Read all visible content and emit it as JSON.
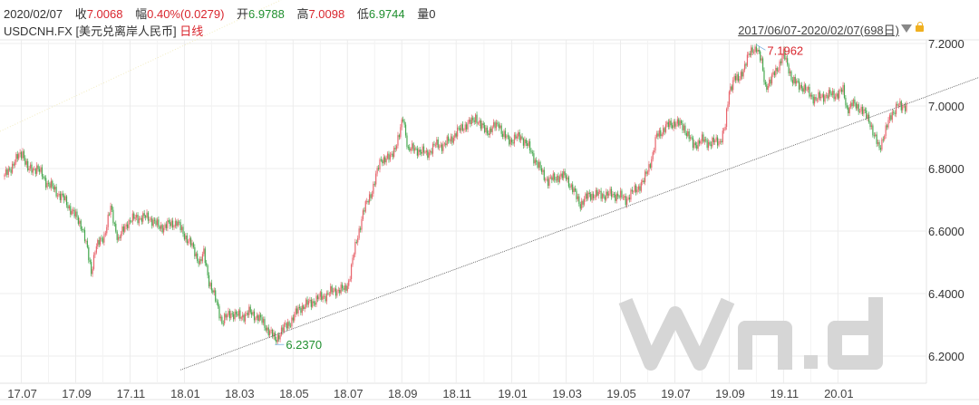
{
  "header": {
    "date": "2020/02/07",
    "close_label": "收",
    "close": "7.0068",
    "change_label": "幅",
    "change": "0.40%(0.0279)",
    "open_label": "开",
    "open": "6.9788",
    "high_label": "高",
    "high": "7.0098",
    "low_label": "低",
    "low": "6.9744",
    "volume_label": "量",
    "volume": "0",
    "symbol": "USDCNH.FX [美元兑离岸人民币]",
    "period": "日线",
    "range": "2017/06/07-2020/02/07(698日)"
  },
  "watermark": "Win.d",
  "colors": {
    "up": "#e8646c",
    "down": "#46a84f",
    "grid": "#ececec",
    "max": "#d9262e",
    "min": "#1f8f2e"
  },
  "chart_data": {
    "type": "candlestick",
    "title": "USDCNH.FX 日线",
    "xlabel": "",
    "ylabel": "",
    "ylim": [
      6.1558,
      7.2
    ],
    "x_unit": "trading day index (0 = 2017/06/07)",
    "x_ticks": [
      {
        "day": 13,
        "label": "17.07"
      },
      {
        "day": 55,
        "label": "17.09"
      },
      {
        "day": 97,
        "label": "17.11"
      },
      {
        "day": 139,
        "label": "18.01"
      },
      {
        "day": 181,
        "label": "18.03"
      },
      {
        "day": 223,
        "label": "18.05"
      },
      {
        "day": 265,
        "label": "18.07"
      },
      {
        "day": 307,
        "label": "18.09"
      },
      {
        "day": 349,
        "label": "18.11"
      },
      {
        "day": 392,
        "label": "19.01"
      },
      {
        "day": 434,
        "label": "19.03"
      },
      {
        "day": 476,
        "label": "19.05"
      },
      {
        "day": 518,
        "label": "19.07"
      },
      {
        "day": 560,
        "label": "19.09"
      },
      {
        "day": 602,
        "label": "19.11"
      },
      {
        "day": 644,
        "label": "20.01"
      }
    ],
    "y_ticks": [
      "7.2000",
      "7.0000",
      "6.8000",
      "6.6000",
      "6.4000",
      "6.2000"
    ],
    "y_tick_values": [
      7.2,
      7.0,
      6.8,
      6.6,
      6.4,
      6.2
    ],
    "closes_approx": [
      [
        0,
        6.774
      ],
      [
        7,
        6.817
      ],
      [
        14,
        6.855
      ],
      [
        18,
        6.794
      ],
      [
        25,
        6.803
      ],
      [
        32,
        6.759
      ],
      [
        39,
        6.73
      ],
      [
        46,
        6.701
      ],
      [
        53,
        6.658
      ],
      [
        60,
        6.614
      ],
      [
        63,
        6.557
      ],
      [
        67,
        6.47
      ],
      [
        70,
        6.542
      ],
      [
        77,
        6.586
      ],
      [
        82,
        6.672
      ],
      [
        88,
        6.571
      ],
      [
        95,
        6.629
      ],
      [
        102,
        6.643
      ],
      [
        112,
        6.643
      ],
      [
        119,
        6.614
      ],
      [
        123,
        6.614
      ],
      [
        133,
        6.629
      ],
      [
        137,
        6.6
      ],
      [
        144,
        6.557
      ],
      [
        151,
        6.499
      ],
      [
        154,
        6.528
      ],
      [
        158,
        6.441
      ],
      [
        165,
        6.354
      ],
      [
        168,
        6.31
      ],
      [
        175,
        6.339
      ],
      [
        182,
        6.325
      ],
      [
        189,
        6.339
      ],
      [
        196,
        6.325
      ],
      [
        207,
        6.267
      ],
      [
        209,
        6.25
      ],
      [
        214,
        6.281
      ],
      [
        221,
        6.31
      ],
      [
        228,
        6.354
      ],
      [
        235,
        6.368
      ],
      [
        242,
        6.383
      ],
      [
        249,
        6.397
      ],
      [
        256,
        6.412
      ],
      [
        263,
        6.412
      ],
      [
        266,
        6.441
      ],
      [
        270,
        6.528
      ],
      [
        273,
        6.586
      ],
      [
        277,
        6.658
      ],
      [
        284,
        6.73
      ],
      [
        291,
        6.832
      ],
      [
        298,
        6.832
      ],
      [
        305,
        6.904
      ],
      [
        308,
        6.962
      ],
      [
        312,
        6.861
      ],
      [
        319,
        6.861
      ],
      [
        326,
        6.846
      ],
      [
        333,
        6.875
      ],
      [
        340,
        6.875
      ],
      [
        347,
        6.904
      ],
      [
        354,
        6.933
      ],
      [
        361,
        6.948
      ],
      [
        364,
        6.968
      ],
      [
        368,
        6.933
      ],
      [
        375,
        6.919
      ],
      [
        382,
        6.948
      ],
      [
        385,
        6.904
      ],
      [
        392,
        6.89
      ],
      [
        399,
        6.904
      ],
      [
        406,
        6.861
      ],
      [
        413,
        6.803
      ],
      [
        420,
        6.759
      ],
      [
        427,
        6.774
      ],
      [
        434,
        6.774
      ],
      [
        441,
        6.716
      ],
      [
        445,
        6.687
      ],
      [
        452,
        6.716
      ],
      [
        459,
        6.716
      ],
      [
        466,
        6.716
      ],
      [
        473,
        6.716
      ],
      [
        480,
        6.701
      ],
      [
        487,
        6.73
      ],
      [
        494,
        6.759
      ],
      [
        501,
        6.846
      ],
      [
        504,
        6.904
      ],
      [
        511,
        6.933
      ],
      [
        518,
        6.948
      ],
      [
        525,
        6.933
      ],
      [
        532,
        6.875
      ],
      [
        539,
        6.89
      ],
      [
        546,
        6.881
      ],
      [
        553,
        6.89
      ],
      [
        557,
        6.933
      ],
      [
        560,
        7.049
      ],
      [
        564,
        7.093
      ],
      [
        567,
        7.078
      ],
      [
        571,
        7.122
      ],
      [
        574,
        7.151
      ],
      [
        578,
        7.18
      ],
      [
        581,
        7.19
      ],
      [
        585,
        7.136
      ],
      [
        588,
        7.064
      ],
      [
        592,
        7.078
      ],
      [
        595,
        7.107
      ],
      [
        599,
        7.136
      ],
      [
        602,
        7.165
      ],
      [
        606,
        7.122
      ],
      [
        609,
        7.078
      ],
      [
        616,
        7.064
      ],
      [
        623,
        7.035
      ],
      [
        627,
        7.02
      ],
      [
        634,
        7.035
      ],
      [
        641,
        7.035
      ],
      [
        648,
        7.049
      ],
      [
        651,
        6.991
      ],
      [
        655,
        7.006
      ],
      [
        662,
        6.991
      ],
      [
        669,
        6.948
      ],
      [
        672,
        6.904
      ],
      [
        676,
        6.861
      ],
      [
        679,
        6.904
      ],
      [
        686,
        6.977
      ],
      [
        690,
        7.006
      ],
      [
        693,
        6.991
      ],
      [
        697,
        7.0068
      ]
    ],
    "annotations": [
      {
        "type": "max",
        "day": 581,
        "value": 7.1962,
        "label": "7.1962"
      },
      {
        "type": "min",
        "day": 209,
        "value": 6.237,
        "label": "6.2370"
      }
    ],
    "trendline": {
      "from": {
        "day": 136,
        "value": 6.1558
      },
      "to": {
        "day": 756,
        "value": 7.096
      }
    }
  }
}
